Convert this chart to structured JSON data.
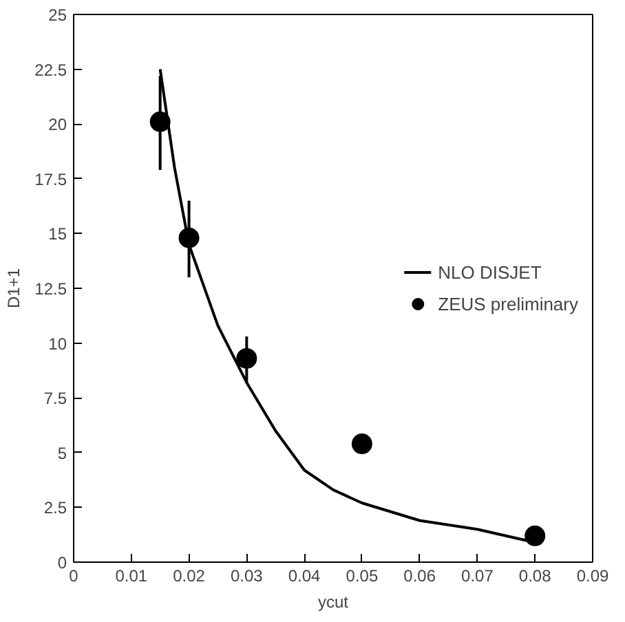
{
  "chart_data": {
    "type": "scatter",
    "xlabel": "ycut",
    "ylabel": "D1+1",
    "xlim": [
      0,
      0.09
    ],
    "ylim": [
      0,
      25
    ],
    "xticks": [
      0,
      0.01,
      0.02,
      0.03,
      0.04,
      0.05,
      0.06,
      0.07,
      0.08,
      0.09
    ],
    "yticks": [
      0,
      2.5,
      5,
      7.5,
      10,
      12.5,
      15,
      17.5,
      20,
      22.5,
      25
    ],
    "grid": false,
    "legend": "right",
    "series": [
      {
        "name": "NLO DISJET",
        "type": "line",
        "color": "#000000",
        "marker": "none",
        "line_style": "solid",
        "x": [
          0.015,
          0.0175,
          0.02,
          0.025,
          0.03,
          0.035,
          0.04,
          0.045,
          0.05,
          0.06,
          0.07,
          0.08
        ],
        "values": [
          22.5,
          18,
          14.5,
          10.8,
          8.2,
          6,
          4.2,
          3.3,
          2.7,
          1.9,
          1.5,
          0.9
        ]
      },
      {
        "name": "ZEUS preliminary",
        "color": "#000000",
        "marker": "circle",
        "x": [
          0.015,
          0.02,
          0.03,
          0.05,
          0.08
        ],
        "values": [
          20.1,
          14.8,
          9.3,
          5.4,
          1.2
        ],
        "errors": [
          [
            17.9,
            22.2
          ],
          [
            13.0,
            16.5
          ],
          [
            8.2,
            10.3
          ],
          [
            5.0,
            5.8
          ],
          null
        ]
      }
    ]
  }
}
